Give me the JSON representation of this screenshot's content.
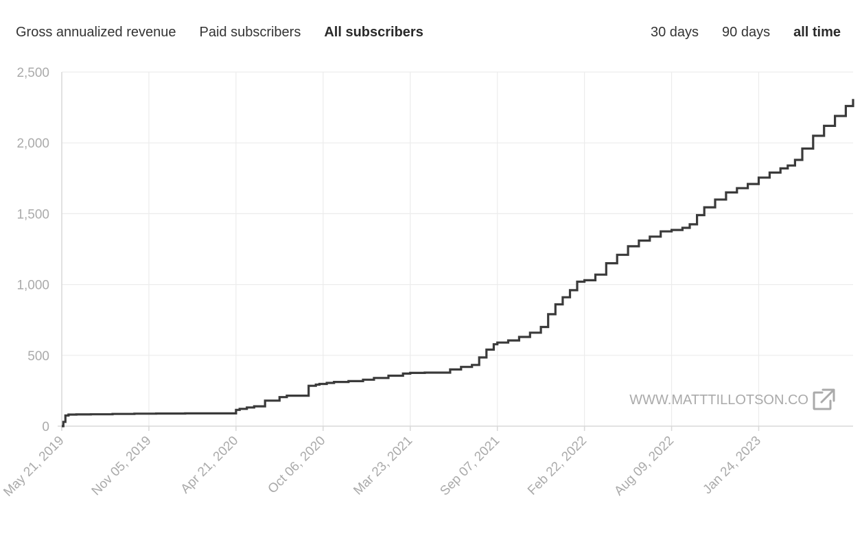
{
  "header": {
    "metric_tabs": [
      {
        "label": "Gross annualized revenue",
        "active": false
      },
      {
        "label": "Paid subscribers",
        "active": false
      },
      {
        "label": "All subscribers",
        "active": true
      }
    ],
    "range_tabs": [
      {
        "label": "30 days",
        "active": false
      },
      {
        "label": "90 days",
        "active": false
      },
      {
        "label": "all time",
        "active": true
      }
    ]
  },
  "watermark": {
    "text": "WWW.MATTTILLOTSON.CO",
    "icon": "external-link-icon"
  },
  "colors": {
    "line": "#3a3a3a",
    "grid": "#ececec",
    "tick_text": "#aaaaaa",
    "axis": "#d8d8d8"
  },
  "chart_data": {
    "type": "line",
    "title": "",
    "xlabel": "",
    "ylabel": "",
    "ylim": [
      0,
      2500
    ],
    "xlim": [
      "2019-05-21",
      "2023-07-25"
    ],
    "yticks": [
      0,
      500,
      1000,
      1500,
      2000,
      2500
    ],
    "ytick_labels": [
      "0",
      "500",
      "1,000",
      "1,500",
      "2,000",
      "2,500"
    ],
    "xtick_labels": [
      "May 21, 2019",
      "Nov 05, 2019",
      "Apr 21, 2020",
      "Oct 06, 2020",
      "Mar 23, 2021",
      "Sep 07, 2021",
      "Feb 22, 2022",
      "Aug 09, 2022",
      "Jan 24, 2023"
    ],
    "xtick_dates": [
      "2019-05-21",
      "2019-11-05",
      "2020-04-21",
      "2020-10-06",
      "2021-03-23",
      "2021-09-07",
      "2022-02-22",
      "2022-08-09",
      "2023-01-24"
    ],
    "grid": true,
    "step": true,
    "series": [
      {
        "x": [
          "2019-05-21",
          "2019-05-24",
          "2019-05-28",
          "2019-06-03",
          "2019-06-18",
          "2019-07-16",
          "2019-08-27",
          "2019-10-08",
          "2019-11-19",
          "2020-01-14",
          "2020-02-25",
          "2020-04-07",
          "2020-04-21",
          "2020-04-28",
          "2020-05-12",
          "2020-05-26",
          "2020-06-16",
          "2020-07-14",
          "2020-07-28",
          "2020-08-11",
          "2020-09-08",
          "2020-09-22",
          "2020-09-29",
          "2020-10-13",
          "2020-10-27",
          "2020-11-24",
          "2020-12-22",
          "2021-01-12",
          "2021-02-09",
          "2021-03-09",
          "2021-03-23",
          "2021-04-20",
          "2021-05-18",
          "2021-06-08",
          "2021-06-29",
          "2021-07-20",
          "2021-08-03",
          "2021-08-17",
          "2021-08-31",
          "2021-09-07",
          "2021-09-28",
          "2021-10-19",
          "2021-11-09",
          "2021-11-30",
          "2021-12-14",
          "2021-12-28",
          "2022-01-11",
          "2022-01-25",
          "2022-02-08",
          "2022-02-22",
          "2022-03-15",
          "2022-04-05",
          "2022-04-26",
          "2022-05-17",
          "2022-06-07",
          "2022-06-28",
          "2022-07-19",
          "2022-08-09",
          "2022-08-30",
          "2022-09-13",
          "2022-09-27",
          "2022-10-11",
          "2022-11-01",
          "2022-11-22",
          "2022-12-13",
          "2023-01-03",
          "2023-01-24",
          "2023-02-14",
          "2023-03-07",
          "2023-03-21",
          "2023-04-04",
          "2023-04-18",
          "2023-05-09",
          "2023-05-30",
          "2023-06-20",
          "2023-07-11",
          "2023-07-25"
        ],
        "y": [
          0,
          30,
          75,
          82,
          83,
          84,
          86,
          88,
          89,
          90,
          90,
          90,
          115,
          122,
          132,
          140,
          180,
          205,
          215,
          215,
          285,
          293,
          298,
          305,
          312,
          318,
          328,
          340,
          356,
          371,
          376,
          378,
          378,
          400,
          418,
          432,
          485,
          540,
          578,
          590,
          605,
          630,
          660,
          700,
          790,
          860,
          910,
          960,
          1020,
          1030,
          1070,
          1150,
          1210,
          1270,
          1310,
          1338,
          1375,
          1385,
          1400,
          1425,
          1490,
          1545,
          1600,
          1650,
          1680,
          1710,
          1755,
          1790,
          1820,
          1840,
          1880,
          1960,
          2050,
          2120,
          2190,
          2260,
          2310
        ]
      }
    ]
  }
}
